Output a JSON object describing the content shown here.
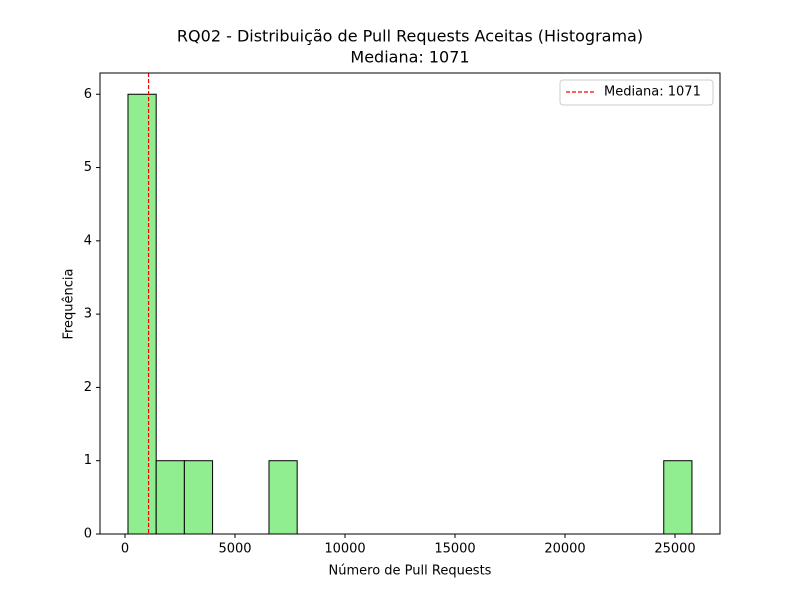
{
  "chart_data": {
    "type": "histogram",
    "title": "RQ02 - Distribuição de Pull Requests Aceitas (Histograma)",
    "subtitle": "Mediana: 1071",
    "x_label": "Número de Pull Requests",
    "y_label": "Frequência",
    "bins": [
      136,
      1418,
      2699,
      3981,
      5263,
      6545,
      7826,
      9108,
      10390,
      11671,
      12953,
      14235,
      15516,
      16798,
      18080,
      19362,
      20643,
      21925,
      23207,
      24488,
      25770
    ],
    "counts": [
      6,
      1,
      1,
      0,
      0,
      1,
      0,
      0,
      0,
      0,
      0,
      0,
      0,
      0,
      0,
      0,
      0,
      0,
      0,
      1
    ],
    "color": "#90ee90",
    "edgecolor": "#000000",
    "median_line": {
      "name": "Mediana: 1071",
      "value": 1071,
      "color": "#ff0000"
    },
    "legend": "upper right",
    "xlim": [
      -1136,
      27045
    ],
    "ylim": [
      0,
      6.29
    ],
    "xticks": [
      0,
      5000,
      10000,
      15000,
      20000,
      25000
    ],
    "yticks": [
      0,
      1,
      2,
      3,
      4,
      5,
      6
    ]
  }
}
